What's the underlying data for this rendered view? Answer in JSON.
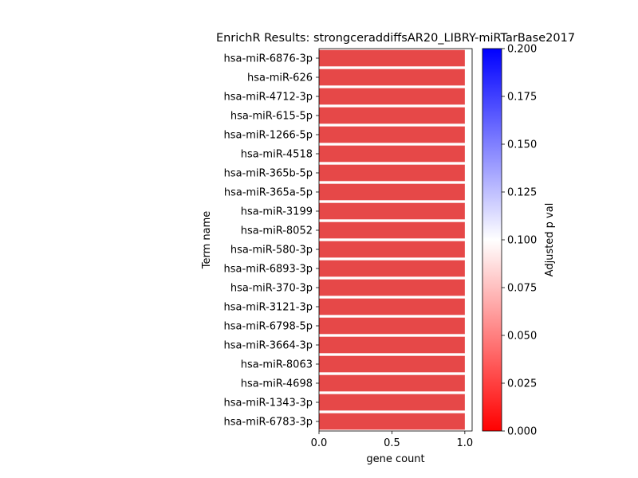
{
  "chart_data": {
    "type": "bar",
    "orientation": "horizontal",
    "title": "EnrichR Results: strongceraddiffsAR20_LIBRY-miRTarBase2017",
    "xlabel": "gene count",
    "ylabel": "Term name",
    "xlim": [
      0,
      1.05
    ],
    "xticks": [
      0.0,
      0.5,
      1.0
    ],
    "xtick_labels": [
      "0.0",
      "0.5",
      "1.0"
    ],
    "categories": [
      "hsa-miR-6876-3p",
      "hsa-miR-626",
      "hsa-miR-4712-3p",
      "hsa-miR-615-5p",
      "hsa-miR-1266-5p",
      "hsa-miR-4518",
      "hsa-miR-365b-5p",
      "hsa-miR-365a-5p",
      "hsa-miR-3199",
      "hsa-miR-8052",
      "hsa-miR-580-3p",
      "hsa-miR-6893-3p",
      "hsa-miR-370-3p",
      "hsa-miR-3121-3p",
      "hsa-miR-6798-5p",
      "hsa-miR-3664-3p",
      "hsa-miR-8063",
      "hsa-miR-4698",
      "hsa-miR-1343-3p",
      "hsa-miR-6783-3p"
    ],
    "values": [
      1,
      1,
      1,
      1,
      1,
      1,
      1,
      1,
      1,
      1,
      1,
      1,
      1,
      1,
      1,
      1,
      1,
      1,
      1,
      1
    ],
    "bar_color": "#e64848",
    "grid": false,
    "colorbar": {
      "label": "Adjusted p val",
      "range": [
        0.0,
        0.2
      ],
      "ticks": [
        0.0,
        0.025,
        0.05,
        0.075,
        0.1,
        0.125,
        0.15,
        0.175,
        0.2
      ],
      "tick_labels": [
        "0.000",
        "0.025",
        "0.050",
        "0.075",
        "0.100",
        "0.125",
        "0.150",
        "0.175",
        "0.200"
      ],
      "colors": {
        "low": "#ff0000",
        "mid": "#ffffff",
        "high": "#0000ff"
      }
    }
  }
}
